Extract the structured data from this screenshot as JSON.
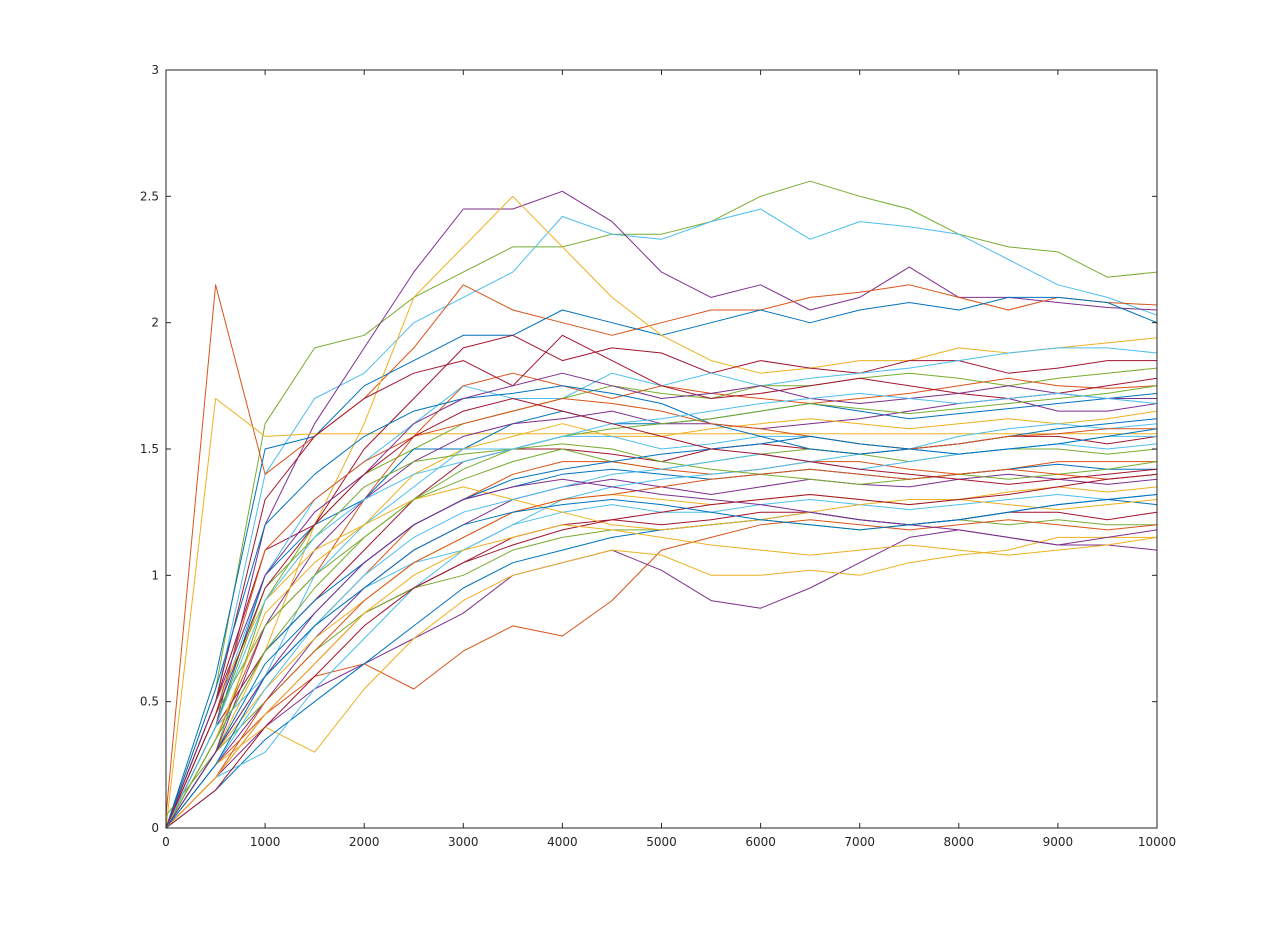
{
  "chart_data": {
    "type": "line",
    "title": "",
    "xlabel": "",
    "ylabel": "",
    "xlim": [
      0,
      10000
    ],
    "ylim": [
      0,
      3
    ],
    "xticks": [
      0,
      1000,
      2000,
      3000,
      4000,
      5000,
      6000,
      7000,
      8000,
      9000,
      10000
    ],
    "yticks": [
      0,
      0.5,
      1,
      1.5,
      2,
      2.5,
      3
    ],
    "xtick_labels": [
      "0",
      "1000",
      "2000",
      "3000",
      "4000",
      "5000",
      "6000",
      "7000",
      "8000",
      "9000",
      "10000"
    ],
    "ytick_labels": [
      "0",
      "0.5",
      "1",
      "1.5",
      "2",
      "2.5",
      "3"
    ],
    "grid": false,
    "legend": "none",
    "colors": [
      "#0072BD",
      "#D95319",
      "#EDB120",
      "#7E2F8E",
      "#77AC30",
      "#4DBEEE",
      "#A2142F"
    ],
    "x": [
      0,
      500,
      1000,
      1500,
      2000,
      2500,
      3000,
      3500,
      4000,
      4500,
      5000,
      5500,
      6000,
      6500,
      7000,
      7500,
      8000,
      8500,
      9000,
      9500,
      10000
    ],
    "series": [
      {
        "color": "#77AC30",
        "values": [
          0,
          0.55,
          1.6,
          1.9,
          1.95,
          2.1,
          2.2,
          2.3,
          2.3,
          2.35,
          2.35,
          2.4,
          2.5,
          2.56,
          2.5,
          2.45,
          2.35,
          2.3,
          2.28,
          2.18,
          2.2
        ]
      },
      {
        "color": "#4DBEEE",
        "values": [
          0,
          0.5,
          1.4,
          1.7,
          1.8,
          2.0,
          2.1,
          2.2,
          2.42,
          2.35,
          2.33,
          2.4,
          2.45,
          2.33,
          2.4,
          2.38,
          2.35,
          2.25,
          2.15,
          2.1,
          2.03
        ]
      },
      {
        "color": "#7E2F8E",
        "values": [
          0,
          0.4,
          1.2,
          1.6,
          1.9,
          2.2,
          2.45,
          2.45,
          2.52,
          2.4,
          2.2,
          2.1,
          2.15,
          2.05,
          2.1,
          2.22,
          2.1,
          2.1,
          2.08,
          2.06,
          2.05
        ]
      },
      {
        "color": "#D95319",
        "values": [
          0.05,
          2.15,
          1.4,
          1.55,
          1.7,
          1.9,
          2.15,
          2.05,
          2.0,
          1.95,
          2.0,
          2.05,
          2.05,
          2.1,
          2.12,
          2.15,
          2.1,
          2.05,
          2.1,
          2.08,
          2.07
        ]
      },
      {
        "color": "#0072BD",
        "values": [
          0,
          0.6,
          1.5,
          1.55,
          1.75,
          1.85,
          1.95,
          1.95,
          2.05,
          2.0,
          1.95,
          2.0,
          2.05,
          2.0,
          2.05,
          2.08,
          2.05,
          2.1,
          2.1,
          2.08,
          2.0
        ]
      },
      {
        "color": "#EDB120",
        "values": [
          0,
          1.7,
          1.55,
          1.56,
          1.56,
          1.56,
          1.56,
          1.56,
          1.56,
          1.56,
          1.56,
          1.56,
          1.56,
          1.56,
          1.56,
          1.56,
          1.56,
          1.56,
          1.56,
          1.56,
          1.56
        ]
      },
      {
        "color": "#EDB120",
        "values": [
          0,
          0.3,
          0.7,
          1.2,
          1.6,
          2.1,
          2.3,
          2.5,
          2.3,
          2.1,
          1.95,
          1.85,
          1.8,
          1.82,
          1.85,
          1.85,
          1.9,
          1.88,
          1.9,
          1.92,
          1.94
        ]
      },
      {
        "color": "#A2142F",
        "values": [
          0,
          0.5,
          1.1,
          1.2,
          1.5,
          1.7,
          1.9,
          1.95,
          1.85,
          1.9,
          1.88,
          1.8,
          1.85,
          1.82,
          1.8,
          1.85,
          1.85,
          1.8,
          1.82,
          1.85,
          1.85
        ]
      },
      {
        "color": "#4DBEEE",
        "values": [
          0,
          0.45,
          1.0,
          1.3,
          1.45,
          1.6,
          1.75,
          1.7,
          1.7,
          1.8,
          1.75,
          1.8,
          1.75,
          1.78,
          1.8,
          1.82,
          1.85,
          1.88,
          1.9,
          1.9,
          1.88
        ]
      },
      {
        "color": "#77AC30",
        "values": [
          0.05,
          0.3,
          0.9,
          1.2,
          1.4,
          1.5,
          1.6,
          1.65,
          1.7,
          1.75,
          1.72,
          1.7,
          1.75,
          1.75,
          1.78,
          1.8,
          1.78,
          1.75,
          1.78,
          1.8,
          1.82
        ]
      },
      {
        "color": "#D95319",
        "values": [
          0,
          0.35,
          0.8,
          1.0,
          1.3,
          1.55,
          1.75,
          1.8,
          1.75,
          1.7,
          1.75,
          1.72,
          1.7,
          1.68,
          1.7,
          1.72,
          1.75,
          1.78,
          1.75,
          1.74,
          1.75
        ]
      },
      {
        "color": "#0072BD",
        "values": [
          0,
          0.4,
          1.0,
          1.2,
          1.3,
          1.5,
          1.5,
          1.6,
          1.65,
          1.6,
          1.6,
          1.62,
          1.65,
          1.68,
          1.65,
          1.62,
          1.64,
          1.66,
          1.68,
          1.7,
          1.72
        ]
      },
      {
        "color": "#7E2F8E",
        "values": [
          0,
          0.3,
          0.8,
          1.1,
          1.3,
          1.45,
          1.55,
          1.6,
          1.62,
          1.65,
          1.6,
          1.6,
          1.58,
          1.6,
          1.62,
          1.65,
          1.68,
          1.7,
          1.65,
          1.65,
          1.68
        ]
      },
      {
        "color": "#EDB120",
        "values": [
          0,
          0.5,
          0.9,
          1.1,
          1.2,
          1.4,
          1.5,
          1.55,
          1.6,
          1.55,
          1.55,
          1.58,
          1.6,
          1.62,
          1.6,
          1.58,
          1.6,
          1.62,
          1.6,
          1.62,
          1.65
        ]
      },
      {
        "color": "#4DBEEE",
        "values": [
          0,
          0.3,
          0.6,
          1.0,
          1.2,
          1.35,
          1.5,
          1.5,
          1.55,
          1.55,
          1.5,
          1.52,
          1.55,
          1.55,
          1.52,
          1.5,
          1.55,
          1.58,
          1.6,
          1.58,
          1.6
        ]
      },
      {
        "color": "#A2142F",
        "values": [
          0,
          0.4,
          0.7,
          0.9,
          1.1,
          1.3,
          1.45,
          1.5,
          1.5,
          1.48,
          1.45,
          1.5,
          1.52,
          1.5,
          1.48,
          1.5,
          1.52,
          1.55,
          1.55,
          1.52,
          1.55
        ]
      },
      {
        "color": "#77AC30",
        "values": [
          0,
          0.45,
          0.8,
          1.0,
          1.15,
          1.3,
          1.38,
          1.45,
          1.5,
          1.45,
          1.42,
          1.45,
          1.48,
          1.5,
          1.48,
          1.45,
          1.48,
          1.5,
          1.5,
          1.48,
          1.5
        ]
      },
      {
        "color": "#D95319",
        "values": [
          0,
          0.3,
          0.6,
          0.8,
          1.0,
          1.2,
          1.3,
          1.4,
          1.45,
          1.45,
          1.42,
          1.4,
          1.42,
          1.45,
          1.45,
          1.42,
          1.4,
          1.42,
          1.45,
          1.45,
          1.45
        ]
      },
      {
        "color": "#0072BD",
        "values": [
          0,
          0.35,
          0.7,
          0.9,
          1.05,
          1.2,
          1.3,
          1.35,
          1.4,
          1.42,
          1.4,
          1.38,
          1.4,
          1.42,
          1.4,
          1.38,
          1.4,
          1.42,
          1.44,
          1.42,
          1.42
        ]
      },
      {
        "color": "#7E2F8E",
        "values": [
          0,
          0.25,
          0.5,
          0.75,
          0.95,
          1.1,
          1.2,
          1.3,
          1.35,
          1.38,
          1.35,
          1.32,
          1.35,
          1.38,
          1.36,
          1.35,
          1.38,
          1.4,
          1.38,
          1.36,
          1.38
        ]
      },
      {
        "color": "#EDB120",
        "values": [
          0,
          0.3,
          0.55,
          0.75,
          0.9,
          1.05,
          1.15,
          1.25,
          1.3,
          1.32,
          1.3,
          1.28,
          1.3,
          1.32,
          1.3,
          1.28,
          1.3,
          1.33,
          1.35,
          1.33,
          1.35
        ]
      },
      {
        "color": "#4DBEEE",
        "values": [
          0,
          0.4,
          0.6,
          0.8,
          0.95,
          1.05,
          1.1,
          1.2,
          1.25,
          1.28,
          1.25,
          1.25,
          1.28,
          1.3,
          1.28,
          1.26,
          1.28,
          1.3,
          1.32,
          1.3,
          1.32
        ]
      },
      {
        "color": "#A2142F",
        "values": [
          0,
          0.2,
          0.45,
          0.65,
          0.85,
          0.95,
          1.05,
          1.15,
          1.2,
          1.22,
          1.2,
          1.22,
          1.25,
          1.25,
          1.22,
          1.2,
          1.22,
          1.25,
          1.25,
          1.22,
          1.25
        ]
      },
      {
        "color": "#77AC30",
        "values": [
          0,
          0.3,
          0.5,
          0.7,
          0.85,
          0.95,
          1.0,
          1.1,
          1.15,
          1.18,
          1.18,
          1.2,
          1.22,
          1.2,
          1.18,
          1.2,
          1.22,
          1.2,
          1.22,
          1.2,
          1.2
        ]
      },
      {
        "color": "#D95319",
        "values": [
          0,
          0.25,
          0.45,
          0.6,
          0.65,
          0.55,
          0.7,
          0.8,
          0.76,
          0.9,
          1.1,
          1.15,
          1.2,
          1.22,
          1.2,
          1.18,
          1.2,
          1.22,
          1.2,
          1.18,
          1.2
        ]
      },
      {
        "color": "#7E2F8E",
        "values": [
          0,
          0.2,
          0.4,
          0.55,
          0.65,
          0.75,
          0.85,
          1.0,
          1.05,
          1.1,
          1.02,
          0.9,
          0.87,
          0.95,
          1.05,
          1.15,
          1.18,
          1.15,
          1.12,
          1.12,
          1.1
        ]
      },
      {
        "color": "#EDB120",
        "values": [
          0,
          0.25,
          0.4,
          0.3,
          0.55,
          0.75,
          0.9,
          1.0,
          1.05,
          1.1,
          1.08,
          1.0,
          1.0,
          1.02,
          1.0,
          1.05,
          1.08,
          1.1,
          1.15,
          1.15,
          1.15
        ]
      },
      {
        "color": "#0072BD",
        "values": [
          0,
          0.15,
          0.35,
          0.5,
          0.65,
          0.8,
          0.95,
          1.05,
          1.1,
          1.15,
          1.18,
          1.2,
          1.22,
          1.25,
          1.22,
          1.2,
          1.22,
          1.25,
          1.28,
          1.3,
          1.28
        ]
      },
      {
        "color": "#4DBEEE",
        "values": [
          0,
          0.2,
          0.3,
          0.55,
          0.75,
          0.95,
          1.1,
          1.2,
          1.3,
          1.35,
          1.38,
          1.4,
          1.42,
          1.45,
          1.48,
          1.5,
          1.48,
          1.5,
          1.52,
          1.5,
          1.52
        ]
      },
      {
        "color": "#A2142F",
        "values": [
          0,
          0.5,
          1.3,
          1.55,
          1.7,
          1.8,
          1.85,
          1.75,
          1.95,
          1.85,
          1.75,
          1.7,
          1.72,
          1.75,
          1.78,
          1.75,
          1.72,
          1.7,
          1.72,
          1.75,
          1.78
        ]
      },
      {
        "color": "#0072BD",
        "values": [
          0,
          0.55,
          1.2,
          1.4,
          1.55,
          1.65,
          1.7,
          1.72,
          1.75,
          1.72,
          1.68,
          1.6,
          1.55,
          1.5,
          1.48,
          1.5,
          1.52,
          1.55,
          1.58,
          1.6,
          1.62
        ]
      },
      {
        "color": "#D95319",
        "values": [
          0,
          0.45,
          1.1,
          1.3,
          1.45,
          1.55,
          1.6,
          1.65,
          1.7,
          1.68,
          1.65,
          1.6,
          1.58,
          1.55,
          1.52,
          1.5,
          1.52,
          1.55,
          1.56,
          1.58,
          1.58
        ]
      },
      {
        "color": "#77AC30",
        "values": [
          0,
          0.4,
          0.95,
          1.15,
          1.35,
          1.45,
          1.48,
          1.5,
          1.52,
          1.5,
          1.45,
          1.42,
          1.4,
          1.38,
          1.36,
          1.38,
          1.4,
          1.38,
          1.4,
          1.42,
          1.45
        ]
      },
      {
        "color": "#EDB120",
        "values": [
          0,
          0.35,
          0.85,
          1.05,
          1.2,
          1.3,
          1.35,
          1.3,
          1.25,
          1.2,
          1.18,
          1.2,
          1.22,
          1.25,
          1.28,
          1.3,
          1.3,
          1.28,
          1.26,
          1.28,
          1.3
        ]
      },
      {
        "color": "#7E2F8E",
        "values": [
          0,
          0.5,
          1.0,
          1.25,
          1.4,
          1.6,
          1.7,
          1.75,
          1.8,
          1.75,
          1.7,
          1.72,
          1.75,
          1.7,
          1.68,
          1.7,
          1.72,
          1.75,
          1.72,
          1.7,
          1.7
        ]
      },
      {
        "color": "#4DBEEE",
        "values": [
          0,
          0.25,
          0.55,
          0.8,
          1.0,
          1.15,
          1.25,
          1.3,
          1.35,
          1.4,
          1.42,
          1.45,
          1.48,
          1.45,
          1.42,
          1.45,
          1.48,
          1.5,
          1.52,
          1.55,
          1.55
        ]
      },
      {
        "color": "#0072BD",
        "values": [
          0,
          0.3,
          0.65,
          0.85,
          1.05,
          1.2,
          1.3,
          1.38,
          1.42,
          1.45,
          1.48,
          1.5,
          1.52,
          1.55,
          1.52,
          1.5,
          1.48,
          1.5,
          1.52,
          1.55,
          1.58
        ]
      },
      {
        "color": "#D95319",
        "values": [
          0,
          0.2,
          0.5,
          0.7,
          0.9,
          1.05,
          1.15,
          1.25,
          1.3,
          1.32,
          1.35,
          1.38,
          1.4,
          1.42,
          1.4,
          1.38,
          1.4,
          1.42,
          1.4,
          1.38,
          1.4
        ]
      },
      {
        "color": "#A2142F",
        "values": [
          0,
          0.15,
          0.4,
          0.6,
          0.8,
          0.95,
          1.05,
          1.12,
          1.18,
          1.22,
          1.25,
          1.28,
          1.3,
          1.32,
          1.3,
          1.28,
          1.3,
          1.32,
          1.35,
          1.38,
          1.4
        ]
      },
      {
        "color": "#77AC30",
        "values": [
          0,
          0.35,
          0.7,
          0.95,
          1.15,
          1.3,
          1.42,
          1.5,
          1.55,
          1.58,
          1.6,
          1.62,
          1.65,
          1.68,
          1.66,
          1.64,
          1.66,
          1.68,
          1.7,
          1.72,
          1.75
        ]
      },
      {
        "color": "#EDB120",
        "values": [
          0,
          0.2,
          0.45,
          0.65,
          0.85,
          1.0,
          1.1,
          1.15,
          1.2,
          1.18,
          1.15,
          1.12,
          1.1,
          1.08,
          1.1,
          1.12,
          1.1,
          1.08,
          1.1,
          1.12,
          1.15
        ]
      },
      {
        "color": "#7E2F8E",
        "values": [
          0,
          0.3,
          0.6,
          0.85,
          1.05,
          1.2,
          1.3,
          1.35,
          1.38,
          1.35,
          1.32,
          1.3,
          1.28,
          1.25,
          1.22,
          1.2,
          1.18,
          1.15,
          1.12,
          1.15,
          1.18
        ]
      },
      {
        "color": "#4DBEEE",
        "values": [
          0,
          0.4,
          0.9,
          1.15,
          1.3,
          1.4,
          1.45,
          1.5,
          1.55,
          1.6,
          1.62,
          1.65,
          1.68,
          1.7,
          1.72,
          1.7,
          1.68,
          1.7,
          1.72,
          1.7,
          1.68
        ]
      },
      {
        "color": "#A2142F",
        "values": [
          0,
          0.45,
          0.95,
          1.2,
          1.4,
          1.55,
          1.65,
          1.7,
          1.65,
          1.6,
          1.55,
          1.5,
          1.48,
          1.45,
          1.42,
          1.4,
          1.38,
          1.36,
          1.38,
          1.4,
          1.42
        ]
      },
      {
        "color": "#0072BD",
        "values": [
          0,
          0.25,
          0.6,
          0.8,
          0.95,
          1.1,
          1.2,
          1.25,
          1.28,
          1.3,
          1.28,
          1.25,
          1.22,
          1.2,
          1.18,
          1.2,
          1.22,
          1.25,
          1.28,
          1.3,
          1.32
        ]
      }
    ]
  }
}
